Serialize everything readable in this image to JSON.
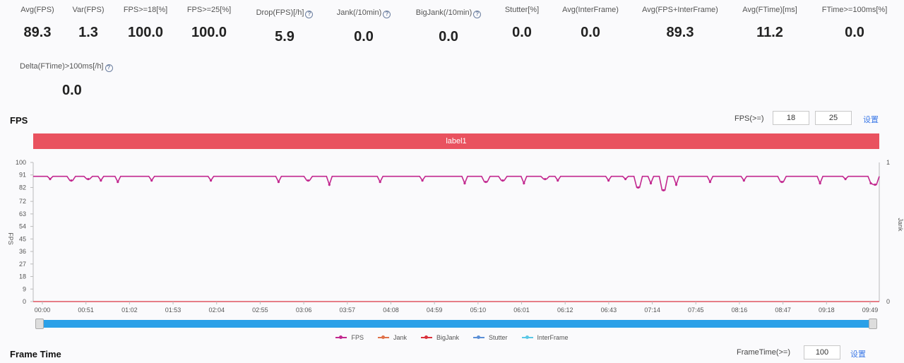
{
  "metrics": [
    {
      "label": "Avg(FPS)",
      "value": "89.3",
      "help": false
    },
    {
      "label": "Var(FPS)",
      "value": "1.3",
      "help": false
    },
    {
      "label": "FPS>=18[%]",
      "value": "100.0",
      "help": false
    },
    {
      "label": "FPS>=25[%]",
      "value": "100.0",
      "help": false
    },
    {
      "label": "Drop(FPS)[/h]",
      "value": "5.9",
      "help": true
    },
    {
      "label": "Jank(/10min)",
      "value": "0.0",
      "help": true
    },
    {
      "label": "BigJank(/10min)",
      "value": "0.0",
      "help": true
    },
    {
      "label": "Stutter[%]",
      "value": "0.0",
      "help": false
    },
    {
      "label": "Avg(InterFrame)",
      "value": "0.0",
      "help": false
    },
    {
      "label": "Avg(FPS+InterFrame)",
      "value": "89.3",
      "help": false
    },
    {
      "label": "Avg(FTime)[ms]",
      "value": "11.2",
      "help": false
    },
    {
      "label": "FTime>=100ms[%]",
      "value": "0.0",
      "help": false
    },
    {
      "label": "Delta(FTime)>100ms[/h]",
      "value": "0.0",
      "help": true
    }
  ],
  "fps_section": {
    "title": "FPS",
    "threshold_label": "FPS(>=)",
    "threshold_1": "18",
    "threshold_2": "25",
    "apply_label": "设置",
    "label_bar_text": "label1"
  },
  "frametime_section": {
    "title": "Frame Time",
    "threshold_label": "FrameTime(>=)",
    "threshold": "100",
    "apply_label": "设置"
  },
  "chart_data": {
    "type": "line",
    "ylabel": "FPS",
    "y2label": "Jank",
    "ylim": [
      0,
      100
    ],
    "y_ticks": [
      "0",
      "9",
      "18",
      "27",
      "36",
      "45",
      "54",
      "63",
      "72",
      "82",
      "91",
      "100"
    ],
    "y2_ticks": [
      "0",
      "1"
    ],
    "x_ticks": [
      "00:00",
      "00:51",
      "01:02",
      "01:53",
      "02:04",
      "02:55",
      "03:06",
      "03:57",
      "04:08",
      "04:59",
      "05:10",
      "06:01",
      "06:12",
      "06:43",
      "07:14",
      "07:45",
      "08:16",
      "08:47",
      "09:18",
      "09:49"
    ],
    "series": [
      {
        "name": "FPS",
        "color": "#c2288f",
        "baseline": 90,
        "dips": [
          [
            0.02,
            88
          ],
          [
            0.045,
            87
          ],
          [
            0.08,
            87
          ],
          [
            0.1,
            86
          ],
          [
            0.14,
            87
          ],
          [
            0.21,
            87
          ],
          [
            0.29,
            86
          ],
          [
            0.325,
            87
          ],
          [
            0.35,
            84
          ],
          [
            0.41,
            86
          ],
          [
            0.46,
            87
          ],
          [
            0.51,
            85
          ],
          [
            0.555,
            87
          ],
          [
            0.58,
            85
          ],
          [
            0.605,
            88
          ],
          [
            0.68,
            87
          ],
          [
            0.7,
            88
          ],
          [
            0.715,
            82
          ],
          [
            0.73,
            85
          ],
          [
            0.745,
            80
          ],
          [
            0.76,
            84
          ],
          [
            0.8,
            86
          ],
          [
            0.84,
            87
          ],
          [
            0.885,
            86
          ],
          [
            0.93,
            85
          ],
          [
            0.96,
            88
          ],
          [
            0.99,
            85
          ],
          [
            0.995,
            84
          ],
          [
            0.535,
            86
          ],
          [
            0.62,
            87
          ],
          [
            0.065,
            88
          ]
        ]
      },
      {
        "name": "Jank",
        "color": "#e0724a"
      },
      {
        "name": "BigJank",
        "color": "#d9313c"
      },
      {
        "name": "Stutter",
        "color": "#5b8fd6"
      },
      {
        "name": "InterFrame",
        "color": "#5bc8e6"
      }
    ]
  }
}
